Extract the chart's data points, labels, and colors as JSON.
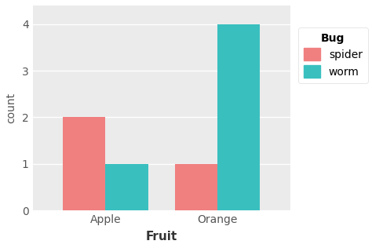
{
  "fruits": [
    "Apple",
    "Orange"
  ],
  "bugs": [
    "spider",
    "worm"
  ],
  "values": {
    "Apple": {
      "spider": 2,
      "worm": 1
    },
    "Orange": {
      "spider": 1,
      "worm": 4
    }
  },
  "colors": {
    "spider": "#F08080",
    "worm": "#3ABFBF"
  },
  "xlabel": "Fruit",
  "ylabel": "count",
  "legend_title": "Bug",
  "ylim": [
    0,
    4.4
  ],
  "yticks": [
    0,
    1,
    2,
    3,
    4
  ],
  "bar_width": 0.38,
  "bg_color": "#EBEBEB",
  "grid_color": "#FFFFFF",
  "legend_bg": "#FFFFFF"
}
